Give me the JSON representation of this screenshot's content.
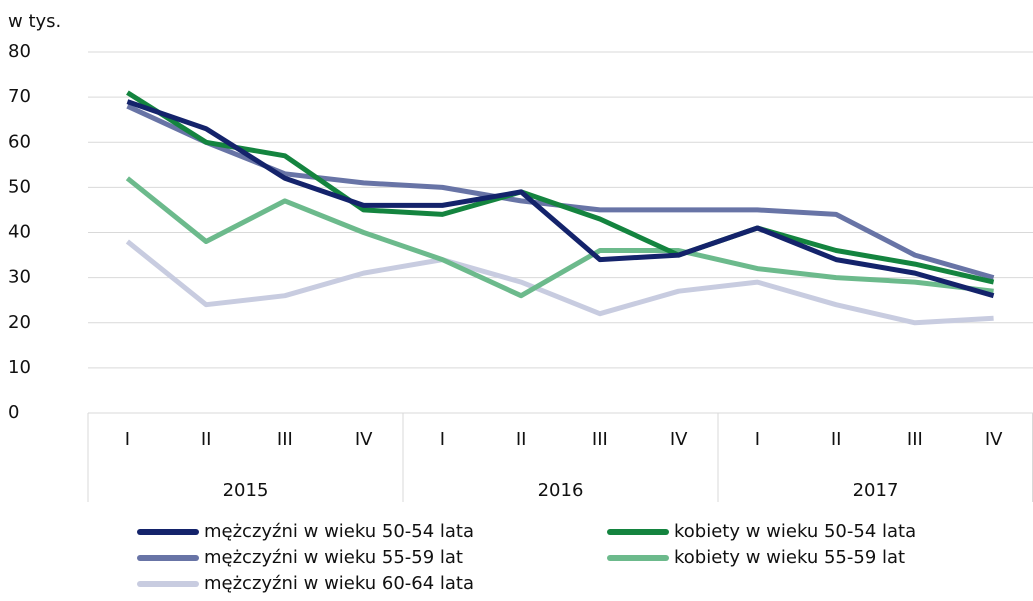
{
  "chart_data": {
    "type": "line",
    "y_label": "w tys.",
    "categories": [
      "I",
      "II",
      "III",
      "IV",
      "I",
      "II",
      "III",
      "IV",
      "I",
      "II",
      "III",
      "IV"
    ],
    "groups": [
      "2015",
      "2016",
      "2017"
    ],
    "ylim": [
      0,
      80
    ],
    "yticks": [
      0,
      10,
      20,
      30,
      40,
      50,
      60,
      70,
      80
    ],
    "grid": true,
    "series": [
      {
        "name": "mężczyźni w wieku 50-54 lata",
        "color": "#14236b",
        "values": [
          69,
          63,
          52,
          46,
          46,
          49,
          34,
          35,
          41,
          34,
          31,
          26
        ]
      },
      {
        "name": "kobiety w wieku 50-54 lata",
        "color": "#14843f",
        "values": [
          71,
          60,
          57,
          45,
          44,
          49,
          43,
          35,
          41,
          36,
          33,
          29
        ]
      },
      {
        "name": "mężczyźni w wieku 55-59 lat",
        "color": "#6874a6",
        "values": [
          68,
          60,
          53,
          51,
          50,
          47,
          45,
          45,
          45,
          44,
          35,
          30
        ]
      },
      {
        "name": "kobiety w wieku 55-59 lat",
        "color": "#6cba8c",
        "values": [
          52,
          38,
          47,
          40,
          34,
          26,
          36,
          36,
          32,
          30,
          29,
          27
        ]
      },
      {
        "name": "mężczyźni w wieku 60-64 lata",
        "color": "#c8cce0",
        "values": [
          38,
          24,
          26,
          31,
          34,
          29,
          22,
          27,
          29,
          24,
          20,
          21
        ]
      }
    ]
  }
}
